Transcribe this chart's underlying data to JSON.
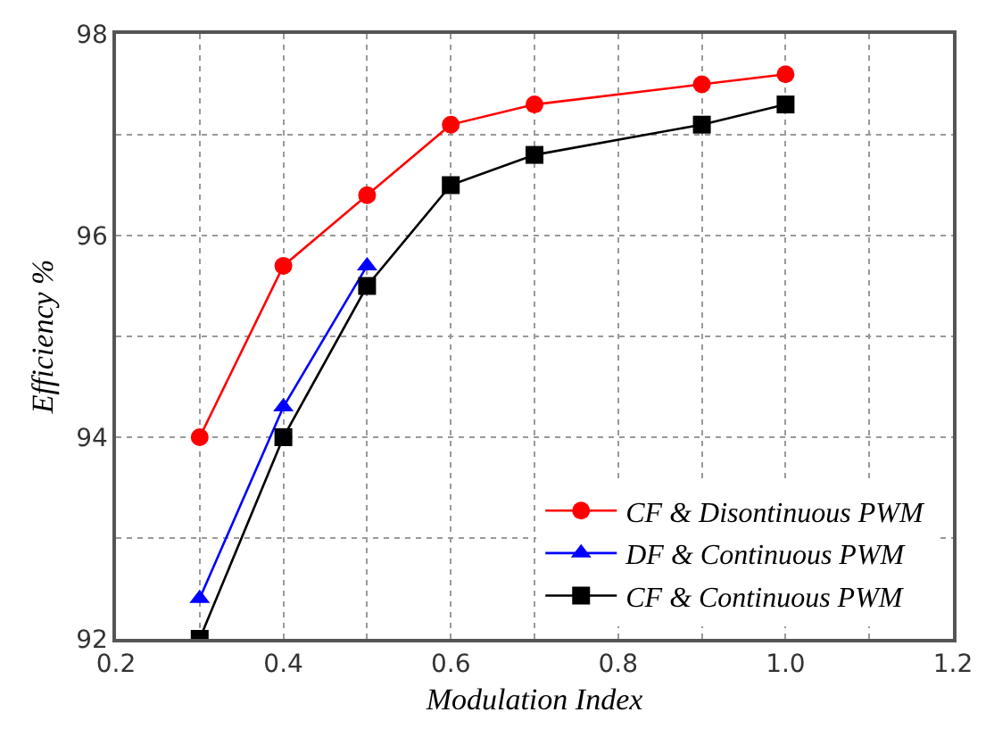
{
  "chart_data": {
    "type": "line",
    "xlabel": "Modulation Index",
    "ylabel": "Efficiency %",
    "xlim": [
      0.2,
      1.2
    ],
    "ylim": [
      92,
      98
    ],
    "xticks": [
      0.2,
      {
        "value": 0.3,
        "label": null
      },
      0.4,
      {
        "value": 0.5,
        "label": null
      },
      0.6,
      {
        "value": 0.7,
        "label": null
      },
      0.8,
      {
        "value": 0.9,
        "label": null
      },
      {
        "value": 1.0,
        "label": "1.0"
      },
      {
        "value": 1.1,
        "label": null
      },
      1.2
    ],
    "yticks": [
      92,
      {
        "value": 93,
        "label": null
      },
      94,
      {
        "value": 95,
        "label": null
      },
      96,
      {
        "value": 97,
        "label": null
      },
      98
    ],
    "grid": true,
    "legend": "bottom right",
    "series": [
      {
        "name": "CF & Disontinuous PWM",
        "color": "#ff0000",
        "marker": "circle",
        "x": [
          0.3,
          0.4,
          0.5,
          0.6,
          0.7,
          0.9,
          1.0
        ],
        "values": [
          94.0,
          95.7,
          96.4,
          97.1,
          97.3,
          97.5,
          97.6
        ]
      },
      {
        "name": "DF & Continuous PWM",
        "color": "#0000ff",
        "marker": "triangle",
        "x": [
          0.3,
          0.4,
          0.5
        ],
        "values": [
          92.4,
          94.3,
          95.7
        ]
      },
      {
        "name": "CF & Continuous PWM",
        "color": "#000000",
        "marker": "square",
        "x": [
          0.3,
          0.4,
          0.5,
          0.6,
          0.7,
          0.9,
          1.0
        ],
        "values": [
          92.0,
          94.0,
          95.5,
          96.5,
          96.8,
          97.1,
          97.3
        ]
      }
    ]
  }
}
